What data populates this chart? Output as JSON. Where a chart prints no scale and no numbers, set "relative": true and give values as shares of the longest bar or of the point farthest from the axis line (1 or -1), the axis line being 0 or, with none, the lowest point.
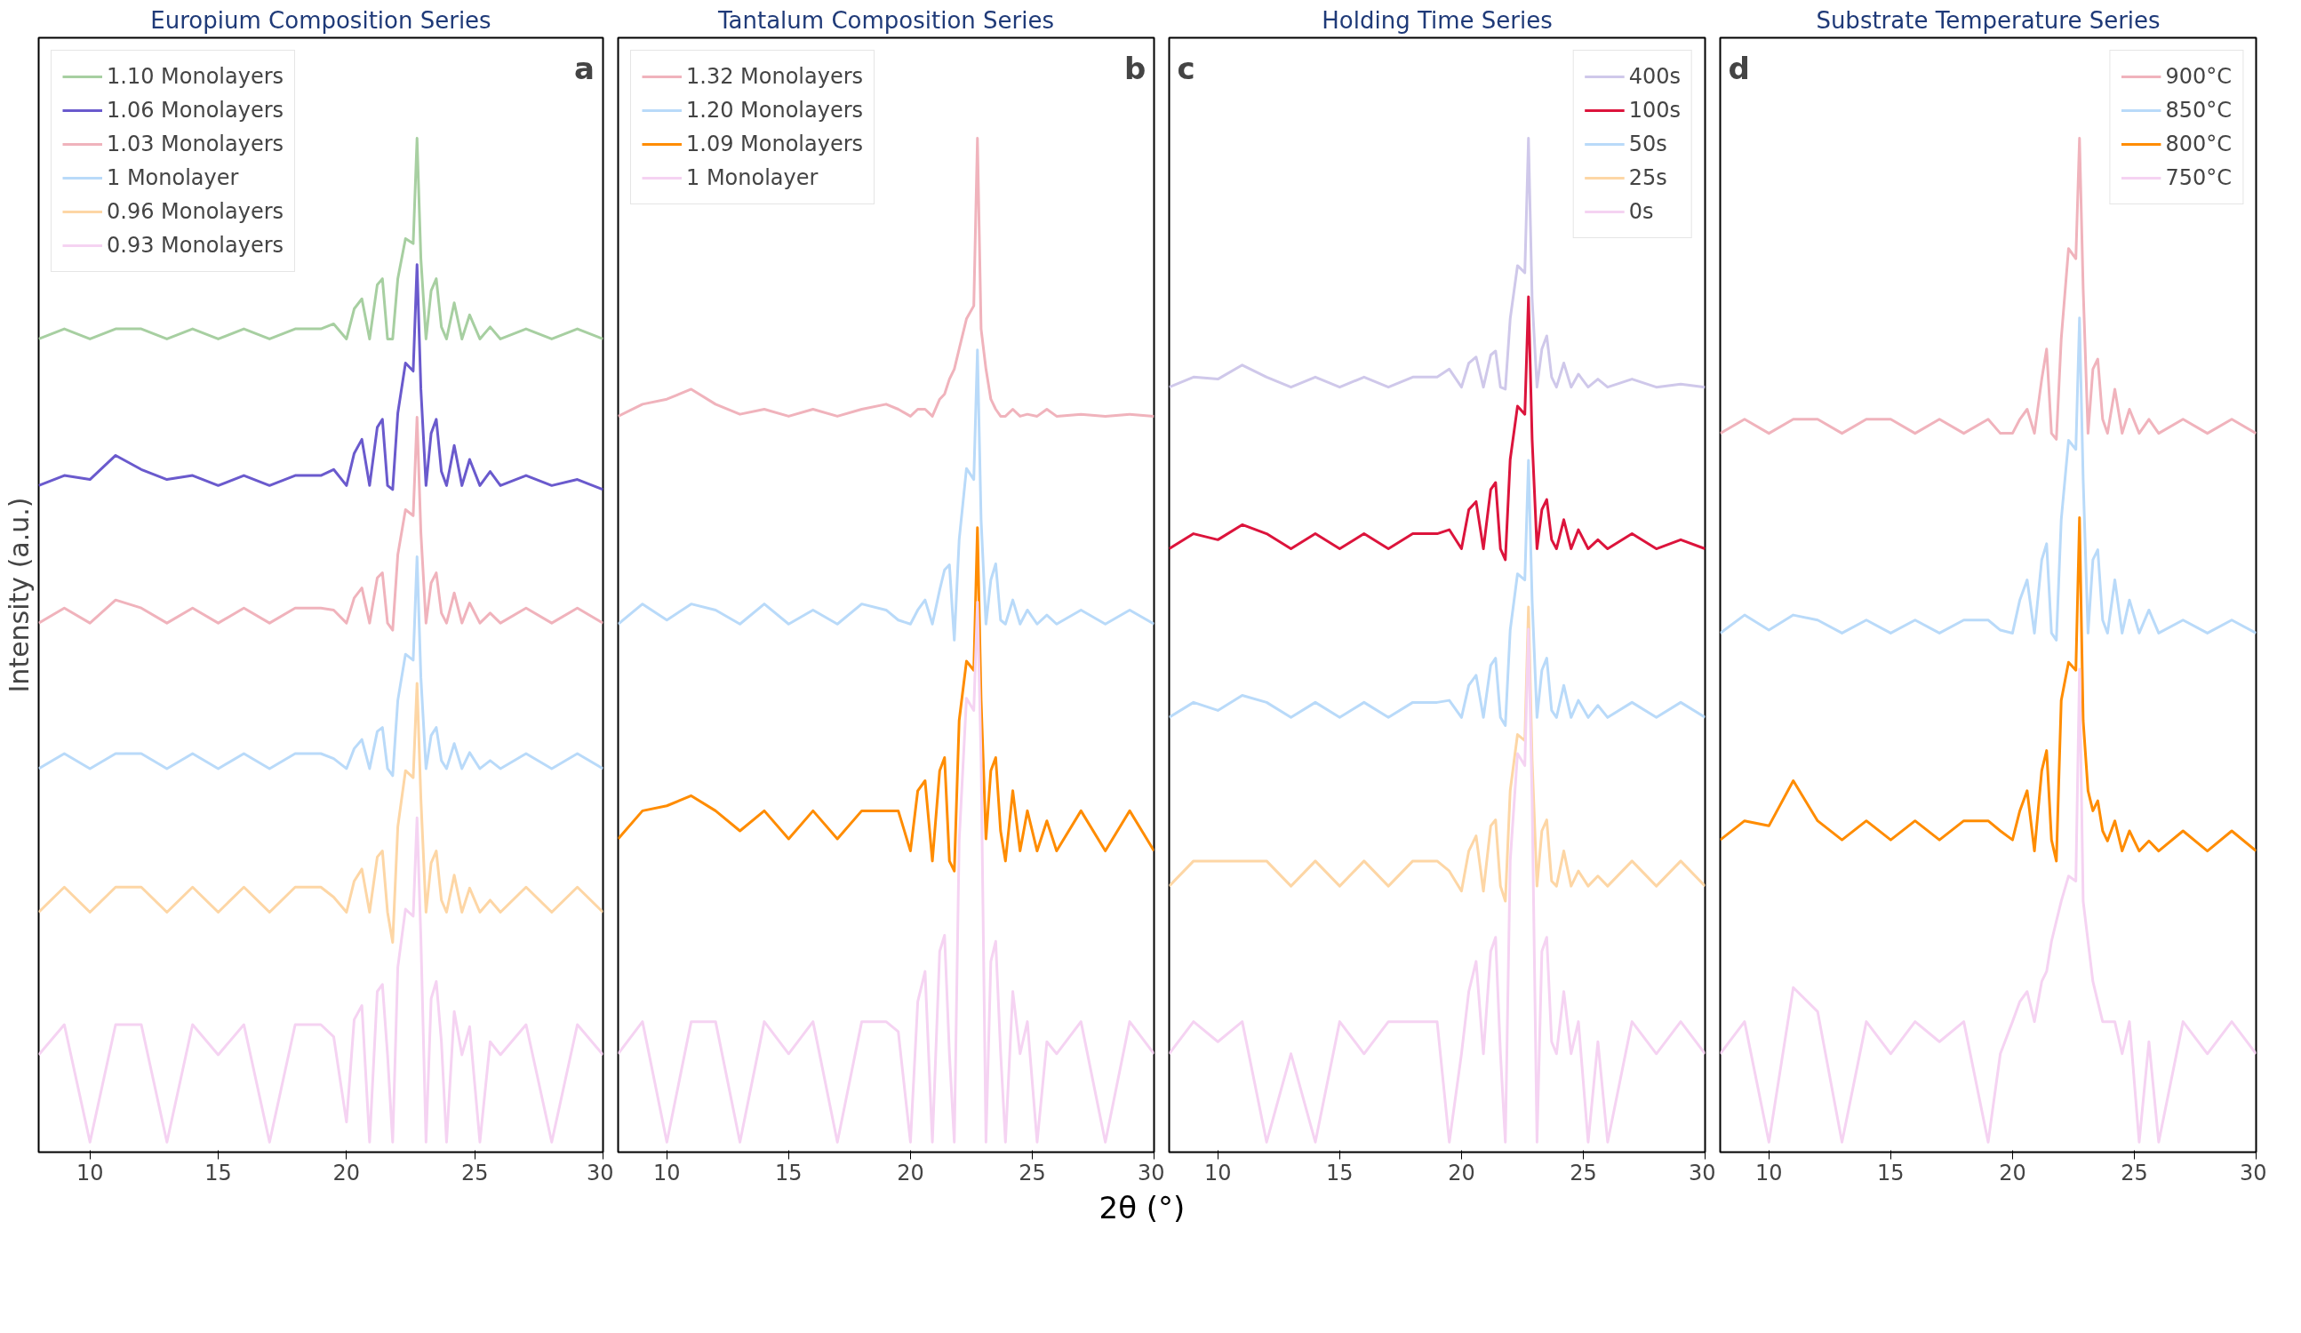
{
  "chart_data": [
    {
      "type": "line",
      "title": "Europium Composition Series",
      "ylabel": "Intensity (a.u.)",
      "relative": true,
      "legend": "top left",
      "grid": false,
      "marker": "none",
      "line_style": "solid",
      "annotations": [
        "a"
      ],
      "xlim": [
        8,
        30
      ],
      "xticks": [
        10,
        15,
        20,
        25,
        30
      ],
      "x": [
        8,
        9,
        10,
        11,
        12,
        13,
        14,
        15,
        16,
        17,
        18,
        19,
        19.5,
        20,
        20.3,
        20.6,
        20.9,
        21.2,
        21.4,
        21.6,
        21.8,
        22.0,
        22.3,
        22.6,
        22.75,
        22.9,
        23.1,
        23.3,
        23.5,
        23.7,
        23.9,
        24.2,
        24.5,
        24.8,
        25.2,
        25.6,
        26,
        27,
        28,
        29,
        30
      ],
      "series": [
        {
          "name": "1.10 Monolayers",
          "color": "#a7cfa1",
          "values": [
            0.8,
            0.81,
            0.8,
            0.81,
            0.81,
            0.8,
            0.81,
            0.8,
            0.81,
            0.8,
            0.81,
            0.81,
            0.815,
            0.8,
            0.83,
            0.84,
            0.8,
            0.854,
            0.86,
            0.8,
            0.8,
            0.86,
            0.9,
            0.895,
            1.0,
            0.88,
            0.8,
            0.848,
            0.86,
            0.812,
            0.8,
            0.836,
            0.8,
            0.824,
            0.8,
            0.812,
            0.8,
            0.81,
            0.8,
            0.81,
            0.8
          ]
        },
        {
          "name": "1.06 Monolayers",
          "color": "#6a5acd",
          "values": [
            0.654,
            0.664,
            0.66,
            0.684,
            0.67,
            0.66,
            0.664,
            0.654,
            0.664,
            0.654,
            0.664,
            0.664,
            0.67,
            0.654,
            0.686,
            0.7,
            0.654,
            0.712,
            0.72,
            0.654,
            0.65,
            0.726,
            0.776,
            0.768,
            0.874,
            0.75,
            0.654,
            0.706,
            0.72,
            0.668,
            0.654,
            0.694,
            0.654,
            0.68,
            0.654,
            0.668,
            0.654,
            0.664,
            0.654,
            0.66,
            0.65
          ]
        },
        {
          "name": "1.03 Monolayers",
          "color": "#f0b3bc",
          "values": [
            0.517,
            0.532,
            0.517,
            0.54,
            0.532,
            0.517,
            0.532,
            0.517,
            0.532,
            0.517,
            0.532,
            0.532,
            0.53,
            0.517,
            0.542,
            0.552,
            0.517,
            0.562,
            0.567,
            0.517,
            0.51,
            0.585,
            0.63,
            0.624,
            0.722,
            0.607,
            0.517,
            0.557,
            0.567,
            0.527,
            0.517,
            0.547,
            0.517,
            0.537,
            0.517,
            0.527,
            0.517,
            0.532,
            0.517,
            0.532,
            0.517
          ]
        },
        {
          "name": "1 Monolayer",
          "color": "#b9daf9",
          "values": [
            0.372,
            0.387,
            0.372,
            0.387,
            0.387,
            0.372,
            0.387,
            0.372,
            0.387,
            0.372,
            0.387,
            0.387,
            0.382,
            0.372,
            0.392,
            0.401,
            0.372,
            0.409,
            0.413,
            0.372,
            0.365,
            0.44,
            0.486,
            0.48,
            0.583,
            0.463,
            0.372,
            0.405,
            0.413,
            0.38,
            0.372,
            0.397,
            0.372,
            0.388,
            0.372,
            0.38,
            0.372,
            0.387,
            0.372,
            0.387,
            0.372
          ]
        },
        {
          "name": "0.96 Monolayers",
          "color": "#fdd6a5",
          "values": [
            0.229,
            0.254,
            0.229,
            0.254,
            0.254,
            0.229,
            0.254,
            0.229,
            0.254,
            0.229,
            0.254,
            0.254,
            0.244,
            0.229,
            0.26,
            0.272,
            0.229,
            0.284,
            0.29,
            0.229,
            0.199,
            0.314,
            0.37,
            0.363,
            0.457,
            0.342,
            0.229,
            0.278,
            0.29,
            0.241,
            0.229,
            0.266,
            0.229,
            0.253,
            0.229,
            0.241,
            0.229,
            0.254,
            0.229,
            0.254,
            0.229
          ]
        },
        {
          "name": "0.93 Monolayers",
          "color": "#f5d3f2",
          "values": [
            0.087,
            0.117,
            0,
            0.117,
            0.117,
            0,
            0.117,
            0.087,
            0.117,
            0,
            0.117,
            0.117,
            0.105,
            0.02,
            0.122,
            0.136,
            0,
            0.15,
            0.157,
            0.087,
            0,
            0.174,
            0.232,
            0.225,
            0.323,
            0.203,
            0,
            0.143,
            0.16,
            0.1,
            0,
            0.13,
            0.087,
            0.115,
            0,
            0.1,
            0.087,
            0.117,
            0,
            0.117,
            0.087
          ]
        }
      ]
    },
    {
      "type": "line",
      "title": "Tantalum Composition Series",
      "xlabel": "2θ (°)",
      "relative": true,
      "legend": "top left",
      "grid": false,
      "marker": "none",
      "line_style": "solid",
      "annotations": [
        "b"
      ],
      "xlim": [
        8,
        30
      ],
      "xticks": [
        10,
        15,
        20,
        25,
        30
      ],
      "x": [
        8,
        9,
        10,
        11,
        12,
        13,
        14,
        15,
        16,
        17,
        18,
        19,
        19.5,
        20,
        20.3,
        20.6,
        20.9,
        21.2,
        21.4,
        21.6,
        21.8,
        22.0,
        22.3,
        22.6,
        22.75,
        22.9,
        23.1,
        23.3,
        23.5,
        23.7,
        23.9,
        24.2,
        24.5,
        24.8,
        25.2,
        25.6,
        26,
        27,
        28,
        29,
        30
      ],
      "series": [
        {
          "name": "1.32 Monolayers",
          "color": "#f0b3bc",
          "values": [
            0.723,
            0.735,
            0.74,
            0.75,
            0.735,
            0.725,
            0.73,
            0.723,
            0.73,
            0.723,
            0.73,
            0.735,
            0.73,
            0.723,
            0.73,
            0.73,
            0.723,
            0.74,
            0.745,
            0.76,
            0.77,
            0.79,
            0.82,
            0.833,
            1.0,
            0.81,
            0.77,
            0.74,
            0.73,
            0.723,
            0.723,
            0.73,
            0.723,
            0.725,
            0.723,
            0.73,
            0.723,
            0.725,
            0.723,
            0.725,
            0.723
          ]
        },
        {
          "name": "1.20 Monolayers",
          "color": "#b9daf9",
          "values": [
            0.516,
            0.536,
            0.52,
            0.536,
            0.53,
            0.516,
            0.536,
            0.516,
            0.53,
            0.516,
            0.536,
            0.53,
            0.52,
            0.516,
            0.53,
            0.54,
            0.516,
            0.55,
            0.57,
            0.575,
            0.5,
            0.6,
            0.671,
            0.66,
            0.789,
            0.62,
            0.516,
            0.56,
            0.576,
            0.52,
            0.516,
            0.54,
            0.516,
            0.53,
            0.516,
            0.525,
            0.516,
            0.53,
            0.516,
            0.53,
            0.516
          ]
        },
        {
          "name": "1.09 Monolayers",
          "color": "#ff8c00",
          "values": [
            0.302,
            0.33,
            0.335,
            0.345,
            0.33,
            0.31,
            0.33,
            0.302,
            0.33,
            0.302,
            0.33,
            0.33,
            0.33,
            0.29,
            0.35,
            0.36,
            0.28,
            0.37,
            0.383,
            0.28,
            0.27,
            0.42,
            0.479,
            0.47,
            0.612,
            0.44,
            0.302,
            0.37,
            0.383,
            0.31,
            0.28,
            0.35,
            0.29,
            0.33,
            0.29,
            0.32,
            0.29,
            0.33,
            0.29,
            0.33,
            0.29
          ]
        },
        {
          "name": "1 Monolayer",
          "color": "#f5d3f2",
          "values": [
            0.088,
            0.12,
            0,
            0.12,
            0.12,
            0,
            0.12,
            0.088,
            0.12,
            0,
            0.12,
            0.12,
            0.11,
            0,
            0.14,
            0.17,
            0,
            0.19,
            0.206,
            0.088,
            0,
            0.3,
            0.442,
            0.43,
            0.538,
            0.38,
            0,
            0.18,
            0.2,
            0.09,
            0,
            0.15,
            0.088,
            0.12,
            0,
            0.1,
            0.088,
            0.12,
            0,
            0.12,
            0.088
          ]
        }
      ]
    },
    {
      "type": "line",
      "title": "Holding Time Series",
      "relative": true,
      "legend": "top right",
      "grid": false,
      "marker": "none",
      "line_style": "solid",
      "annotations": [
        "c"
      ],
      "xlim": [
        8,
        30
      ],
      "xticks": [
        10,
        15,
        20,
        25,
        30
      ],
      "x": [
        8,
        9,
        10,
        11,
        12,
        13,
        14,
        15,
        16,
        17,
        18,
        19,
        19.5,
        20,
        20.3,
        20.6,
        20.9,
        21.2,
        21.4,
        21.6,
        21.8,
        22.0,
        22.3,
        22.6,
        22.75,
        22.9,
        23.1,
        23.3,
        23.5,
        23.7,
        23.9,
        24.2,
        24.5,
        24.8,
        25.2,
        25.6,
        26,
        27,
        28,
        29,
        30
      ],
      "series": [
        {
          "name": "400s",
          "color": "#cfc8ea",
          "values": [
            0.752,
            0.762,
            0.76,
            0.774,
            0.762,
            0.752,
            0.762,
            0.752,
            0.762,
            0.752,
            0.762,
            0.762,
            0.77,
            0.752,
            0.776,
            0.782,
            0.752,
            0.784,
            0.788,
            0.752,
            0.75,
            0.82,
            0.873,
            0.866,
            1.0,
            0.84,
            0.752,
            0.79,
            0.803,
            0.762,
            0.752,
            0.776,
            0.752,
            0.765,
            0.752,
            0.76,
            0.752,
            0.76,
            0.752,
            0.755,
            0.752
          ]
        },
        {
          "name": "100s",
          "color": "#dc143c",
          "values": [
            0.591,
            0.606,
            0.6,
            0.615,
            0.606,
            0.591,
            0.606,
            0.591,
            0.606,
            0.591,
            0.606,
            0.606,
            0.61,
            0.591,
            0.63,
            0.638,
            0.591,
            0.65,
            0.657,
            0.591,
            0.58,
            0.68,
            0.733,
            0.725,
            0.842,
            0.7,
            0.591,
            0.63,
            0.64,
            0.6,
            0.591,
            0.62,
            0.591,
            0.61,
            0.591,
            0.6,
            0.591,
            0.606,
            0.591,
            0.6,
            0.591
          ]
        },
        {
          "name": "50s",
          "color": "#b9daf9",
          "values": [
            0.423,
            0.438,
            0.43,
            0.445,
            0.438,
            0.423,
            0.438,
            0.423,
            0.438,
            0.423,
            0.438,
            0.438,
            0.44,
            0.423,
            0.455,
            0.465,
            0.423,
            0.475,
            0.482,
            0.423,
            0.415,
            0.51,
            0.566,
            0.56,
            0.679,
            0.54,
            0.423,
            0.47,
            0.482,
            0.43,
            0.423,
            0.455,
            0.423,
            0.44,
            0.423,
            0.435,
            0.423,
            0.438,
            0.423,
            0.438,
            0.423
          ]
        },
        {
          "name": "25s",
          "color": "#fdd6a5",
          "values": [
            0.255,
            0.28,
            0.28,
            0.28,
            0.28,
            0.255,
            0.28,
            0.255,
            0.28,
            0.255,
            0.28,
            0.28,
            0.27,
            0.25,
            0.29,
            0.305,
            0.25,
            0.315,
            0.321,
            0.255,
            0.24,
            0.35,
            0.406,
            0.4,
            0.533,
            0.38,
            0.255,
            0.31,
            0.321,
            0.26,
            0.255,
            0.29,
            0.255,
            0.27,
            0.255,
            0.265,
            0.255,
            0.28,
            0.255,
            0.28,
            0.255
          ]
        },
        {
          "name": "0s",
          "color": "#f5d3f2",
          "values": [
            0.088,
            0.12,
            0.1,
            0.12,
            0,
            0.088,
            0,
            0.12,
            0.088,
            0.12,
            0.12,
            0.12,
            0,
            0.088,
            0.15,
            0.18,
            0.088,
            0.19,
            0.204,
            0.088,
            0,
            0.28,
            0.387,
            0.375,
            0.511,
            0.34,
            0,
            0.19,
            0.204,
            0.1,
            0.088,
            0.15,
            0.088,
            0.12,
            0,
            0.1,
            0,
            0.12,
            0.088,
            0.12,
            0.088
          ]
        }
      ]
    },
    {
      "type": "line",
      "title": "Substrate Temperature Series",
      "relative": true,
      "legend": "top right",
      "grid": false,
      "marker": "none",
      "line_style": "solid",
      "annotations": [
        "d"
      ],
      "xlim": [
        8,
        30
      ],
      "xticks": [
        10,
        15,
        20,
        25,
        30
      ],
      "x": [
        8,
        9,
        10,
        11,
        12,
        13,
        14,
        15,
        16,
        17,
        18,
        19,
        19.5,
        20,
        20.3,
        20.6,
        20.9,
        21.2,
        21.4,
        21.6,
        21.8,
        22.0,
        22.3,
        22.6,
        22.75,
        22.9,
        23.1,
        23.3,
        23.5,
        23.7,
        23.9,
        24.2,
        24.5,
        24.8,
        25.2,
        25.6,
        26,
        27,
        28,
        29,
        30
      ],
      "series": [
        {
          "name": "900°C",
          "color": "#f0b3bc",
          "values": [
            0.706,
            0.72,
            0.706,
            0.72,
            0.72,
            0.706,
            0.72,
            0.72,
            0.706,
            0.72,
            0.706,
            0.72,
            0.706,
            0.706,
            0.72,
            0.73,
            0.706,
            0.76,
            0.79,
            0.706,
            0.7,
            0.8,
            0.89,
            0.88,
            1.0,
            0.85,
            0.706,
            0.77,
            0.78,
            0.72,
            0.706,
            0.75,
            0.706,
            0.73,
            0.706,
            0.72,
            0.706,
            0.72,
            0.706,
            0.72,
            0.706
          ]
        },
        {
          "name": "850°C",
          "color": "#b9daf9",
          "values": [
            0.507,
            0.525,
            0.51,
            0.525,
            0.52,
            0.507,
            0.52,
            0.507,
            0.52,
            0.507,
            0.52,
            0.52,
            0.51,
            0.507,
            0.54,
            0.56,
            0.507,
            0.58,
            0.596,
            0.507,
            0.5,
            0.62,
            0.699,
            0.69,
            0.821,
            0.66,
            0.507,
            0.58,
            0.59,
            0.52,
            0.507,
            0.56,
            0.507,
            0.54,
            0.507,
            0.53,
            0.507,
            0.52,
            0.507,
            0.52,
            0.507
          ]
        },
        {
          "name": "800°C",
          "color": "#ff8c00",
          "values": [
            0.301,
            0.32,
            0.315,
            0.36,
            0.32,
            0.301,
            0.32,
            0.301,
            0.32,
            0.301,
            0.32,
            0.32,
            0.31,
            0.301,
            0.33,
            0.35,
            0.29,
            0.37,
            0.39,
            0.301,
            0.28,
            0.44,
            0.478,
            0.47,
            0.622,
            0.42,
            0.35,
            0.33,
            0.34,
            0.31,
            0.3,
            0.32,
            0.29,
            0.31,
            0.29,
            0.3,
            0.29,
            0.31,
            0.29,
            0.31,
            0.29
          ]
        },
        {
          "name": "750°C",
          "color": "#f5d3f2",
          "values": [
            0.088,
            0.12,
            0,
            0.154,
            0.13,
            0,
            0.12,
            0.088,
            0.12,
            0.1,
            0.12,
            0,
            0.088,
            0.12,
            0.14,
            0.15,
            0.12,
            0.16,
            0.17,
            0.2,
            0.22,
            0.24,
            0.265,
            0.26,
            0.471,
            0.24,
            0.2,
            0.16,
            0.14,
            0.12,
            0.12,
            0.12,
            0.088,
            0.12,
            0,
            0.1,
            0,
            0.12,
            0.088,
            0.12,
            0.088
          ]
        }
      ]
    }
  ]
}
